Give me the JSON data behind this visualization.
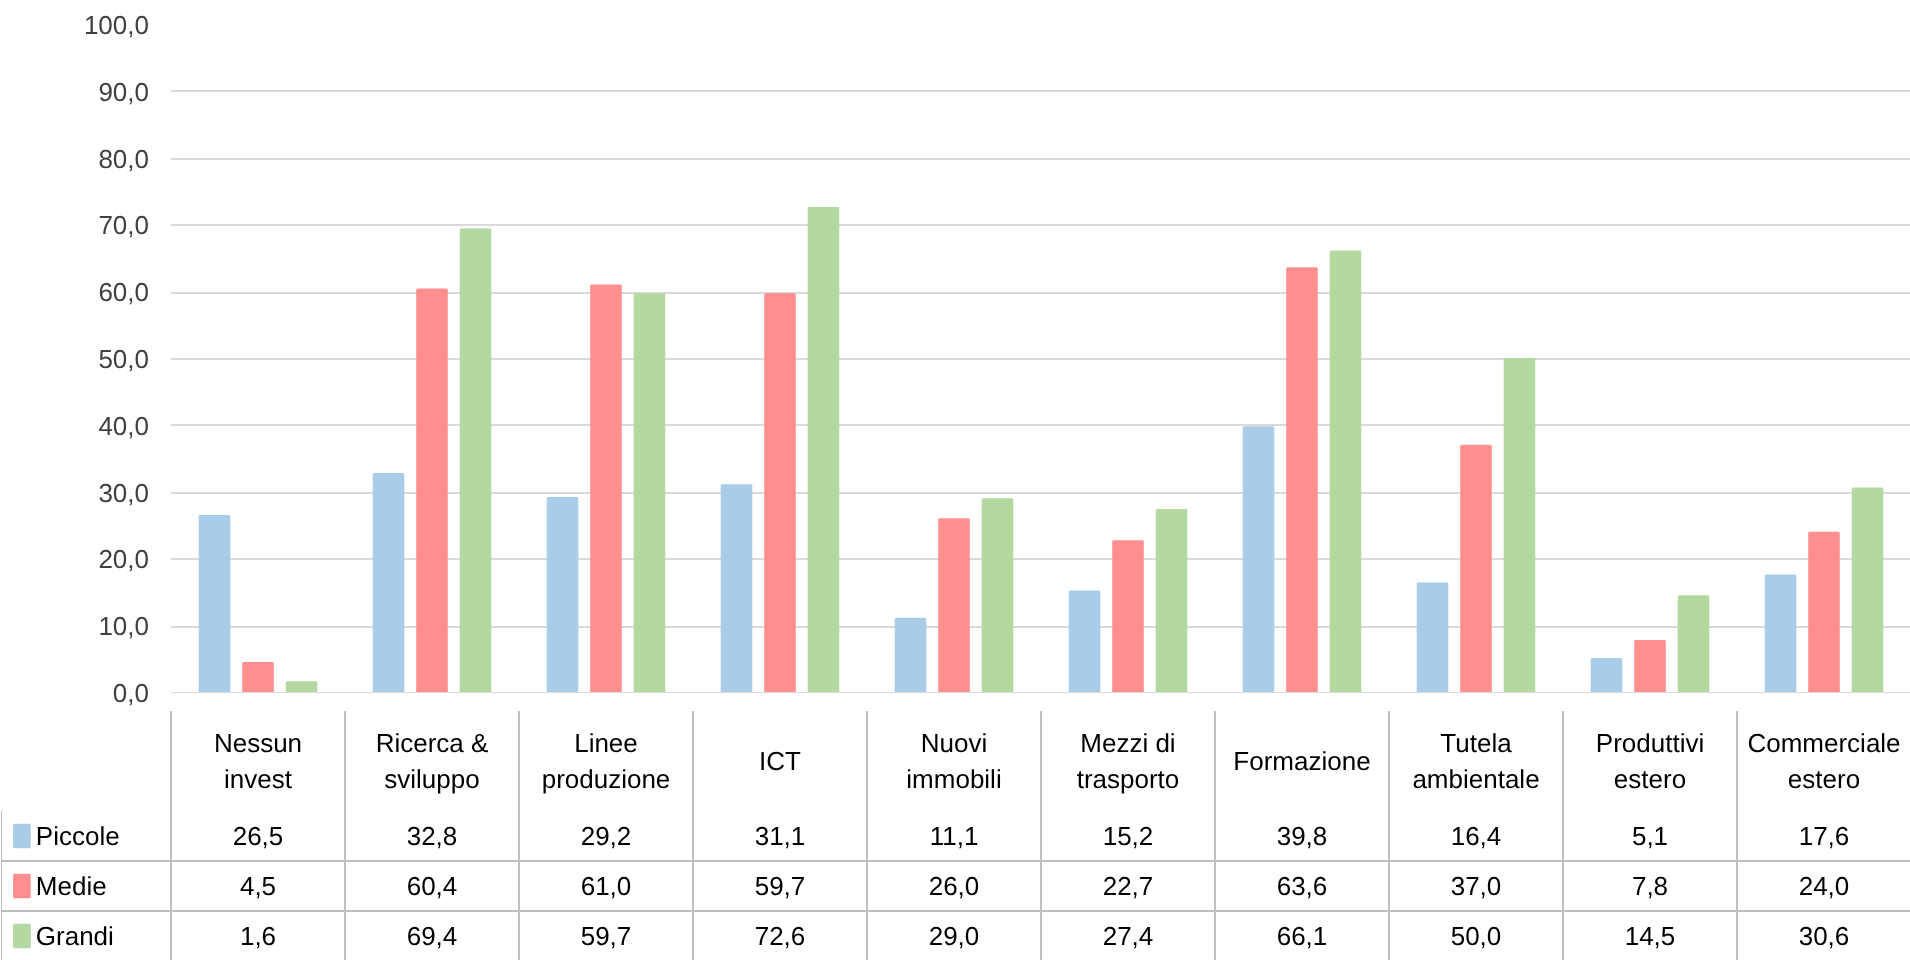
{
  "chart_data": {
    "type": "bar",
    "categories": [
      "Nessun invest",
      "Ricerca & sviluppo",
      "Linee produzione",
      "ICT",
      "Nuovi immobili",
      "Mezzi di trasporto",
      "Formazione",
      "Tutela ambientale",
      "Produttivi estero",
      "Commerciale estero"
    ],
    "series": [
      {
        "name": "Piccole",
        "color": "#a9cde9",
        "values": [
          26.5,
          32.8,
          29.2,
          31.1,
          11.1,
          15.2,
          39.8,
          16.4,
          5.1,
          17.6
        ],
        "value_labels": [
          "26,5",
          "32,8",
          "29,2",
          "31,1",
          "11,1",
          "15,2",
          "39,8",
          "16,4",
          "5,1",
          "17,6"
        ]
      },
      {
        "name": "Medie",
        "color": "#ff8f8f",
        "values": [
          4.5,
          60.4,
          61.0,
          59.7,
          26.0,
          22.7,
          63.6,
          37.0,
          7.8,
          24.0
        ],
        "value_labels": [
          "4,5",
          "60,4",
          "61,0",
          "59,7",
          "26,0",
          "22,7",
          "63,6",
          "37,0",
          "7,8",
          "24,0"
        ]
      },
      {
        "name": "Grandi",
        "color": "#b3d9a0",
        "values": [
          1.6,
          69.4,
          59.7,
          72.6,
          29.0,
          27.4,
          66.1,
          50.0,
          14.5,
          30.6
        ],
        "value_labels": [
          "1,6",
          "69,4",
          "59,7",
          "72,6",
          "29,0",
          "27,4",
          "66,1",
          "50,0",
          "14,5",
          "30,6"
        ]
      }
    ],
    "ylim": [
      0,
      100
    ],
    "yticks": [
      {
        "value": 0,
        "label": "0,0"
      },
      {
        "value": 10,
        "label": "10,0"
      },
      {
        "value": 20,
        "label": "20,0"
      },
      {
        "value": 30,
        "label": "30,0"
      },
      {
        "value": 40,
        "label": "40,0"
      },
      {
        "value": 50,
        "label": "50,0"
      },
      {
        "value": 60,
        "label": "60,0"
      },
      {
        "value": 70,
        "label": "70,0"
      },
      {
        "value": 80,
        "label": "80,0"
      },
      {
        "value": 90,
        "label": "90,0"
      },
      {
        "value": 100,
        "label": "100,0"
      }
    ],
    "grid": "y",
    "legend": "bottom"
  }
}
